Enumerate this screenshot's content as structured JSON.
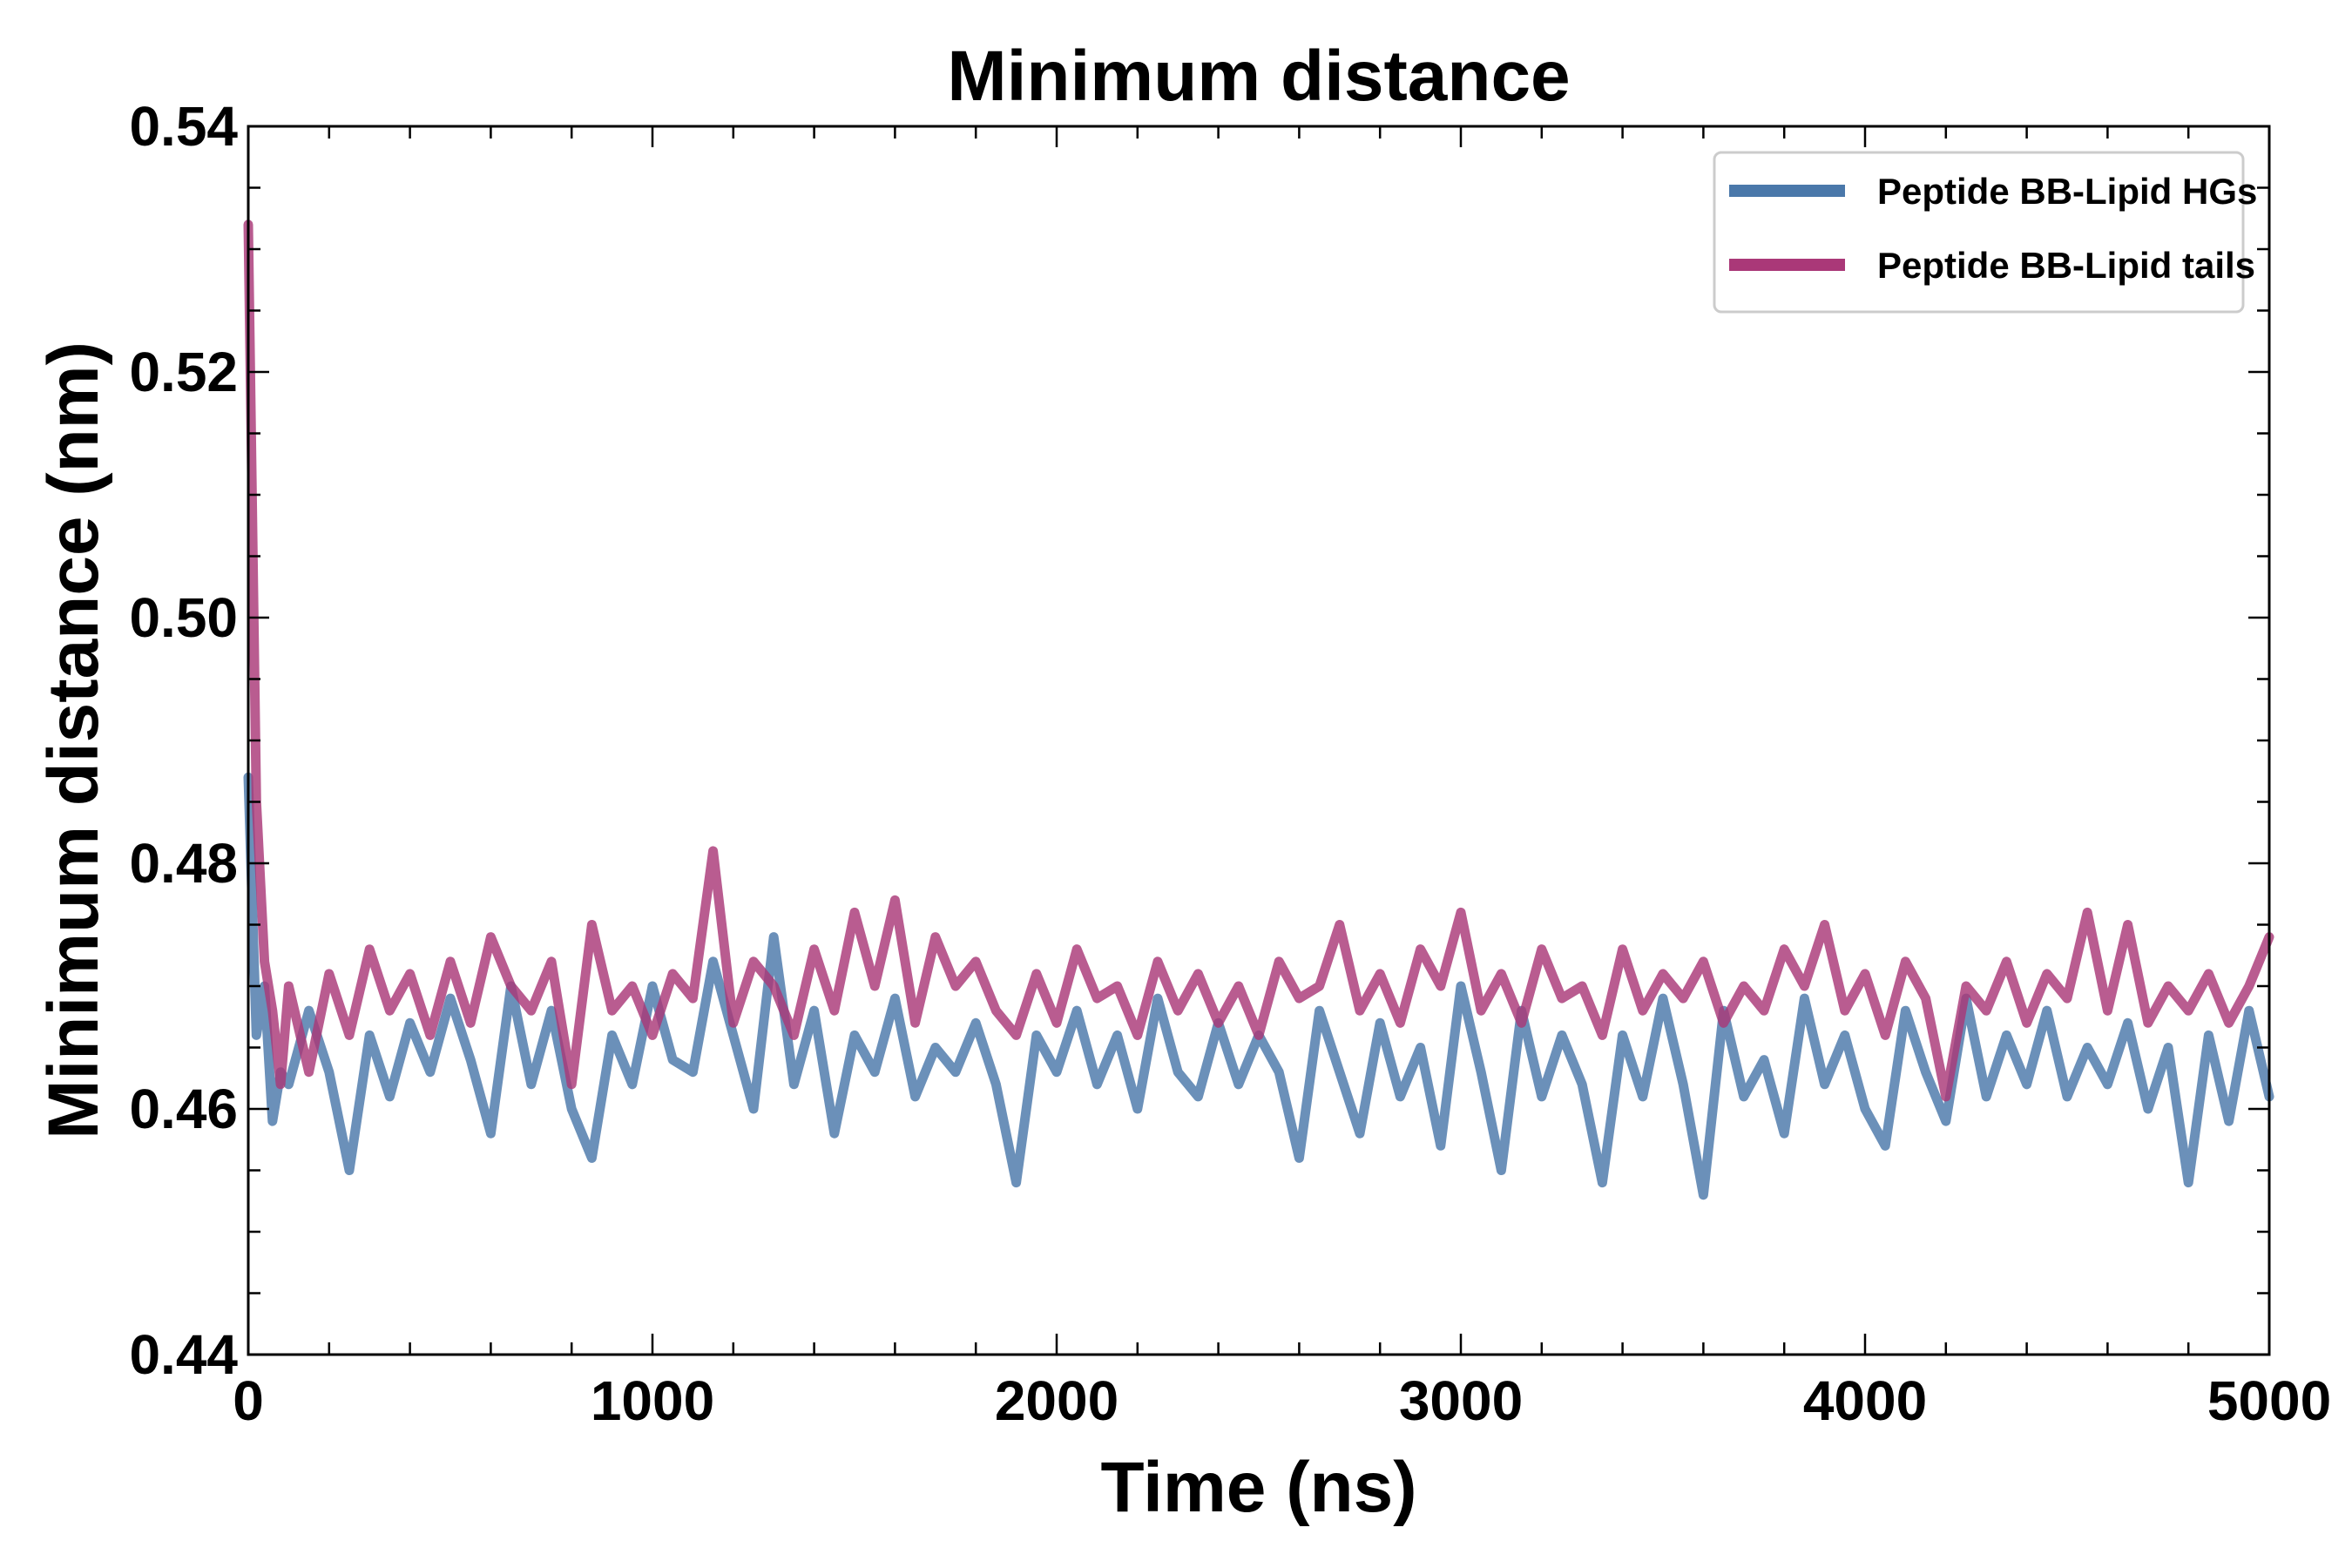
{
  "chart_data": {
    "type": "line",
    "title": "Minimum distance",
    "xlabel": "Time (ns)",
    "ylabel": "Minimum distance (nm)",
    "xlim": [
      0,
      5000
    ],
    "ylim": [
      0.44,
      0.54
    ],
    "xticks": [
      0,
      1000,
      2000,
      3000,
      4000,
      5000
    ],
    "xtick_labels": [
      "0",
      "1000",
      "2000",
      "3000",
      "4000",
      "5000"
    ],
    "yticks": [
      0.44,
      0.46,
      0.48,
      0.5,
      0.52,
      0.54
    ],
    "ytick_labels": [
      "0.44",
      "0.46",
      "0.48",
      "0.50",
      "0.52",
      "0.54"
    ],
    "legend_position": "top-right",
    "grid": false,
    "series": [
      {
        "name": "Peptide BB-Lipid HGs",
        "color": "#4a78aa",
        "x": [
          0,
          20,
          40,
          60,
          80,
          100,
          150,
          200,
          250,
          300,
          350,
          400,
          450,
          500,
          550,
          600,
          650,
          700,
          750,
          800,
          850,
          900,
          950,
          1000,
          1050,
          1100,
          1150,
          1200,
          1250,
          1300,
          1350,
          1400,
          1450,
          1500,
          1550,
          1600,
          1650,
          1700,
          1750,
          1800,
          1850,
          1900,
          1950,
          2000,
          2050,
          2100,
          2150,
          2200,
          2250,
          2300,
          2350,
          2400,
          2450,
          2500,
          2550,
          2600,
          2650,
          2700,
          2750,
          2800,
          2850,
          2900,
          2950,
          3000,
          3050,
          3100,
          3150,
          3200,
          3250,
          3300,
          3350,
          3400,
          3450,
          3500,
          3550,
          3600,
          3650,
          3700,
          3750,
          3800,
          3850,
          3900,
          3950,
          4000,
          4050,
          4100,
          4150,
          4200,
          4250,
          4300,
          4350,
          4400,
          4450,
          4500,
          4550,
          4600,
          4650,
          4700,
          4750,
          4800,
          4850,
          4900,
          4950,
          5000
        ],
        "values": [
          0.487,
          0.466,
          0.47,
          0.459,
          0.463,
          0.462,
          0.468,
          0.463,
          0.455,
          0.466,
          0.461,
          0.467,
          0.463,
          0.469,
          0.464,
          0.458,
          0.47,
          0.462,
          0.468,
          0.46,
          0.456,
          0.466,
          0.462,
          0.47,
          0.464,
          0.463,
          0.472,
          0.466,
          0.46,
          0.474,
          0.462,
          0.468,
          0.458,
          0.466,
          0.463,
          0.469,
          0.461,
          0.465,
          0.463,
          0.467,
          0.462,
          0.454,
          0.466,
          0.463,
          0.468,
          0.462,
          0.466,
          0.46,
          0.469,
          0.463,
          0.461,
          0.467,
          0.462,
          0.466,
          0.463,
          0.456,
          0.468,
          0.463,
          0.458,
          0.467,
          0.461,
          0.465,
          0.457,
          0.47,
          0.463,
          0.455,
          0.468,
          0.461,
          0.466,
          0.462,
          0.454,
          0.466,
          0.461,
          0.469,
          0.462,
          0.453,
          0.468,
          0.461,
          0.464,
          0.458,
          0.469,
          0.462,
          0.466,
          0.46,
          0.457,
          0.468,
          0.463,
          0.459,
          0.469,
          0.461,
          0.466,
          0.462,
          0.468,
          0.461,
          0.465,
          0.462,
          0.467,
          0.46,
          0.465,
          0.454,
          0.466,
          0.459,
          0.468,
          0.461
        ]
      },
      {
        "name": "Peptide BB-Lipid tails",
        "color": "#aa3878",
        "x": [
          0,
          20,
          40,
          60,
          80,
          100,
          150,
          200,
          250,
          300,
          350,
          400,
          450,
          500,
          550,
          600,
          650,
          700,
          750,
          800,
          850,
          900,
          950,
          1000,
          1050,
          1100,
          1150,
          1200,
          1250,
          1300,
          1350,
          1400,
          1450,
          1500,
          1550,
          1600,
          1650,
          1700,
          1750,
          1800,
          1850,
          1900,
          1950,
          2000,
          2050,
          2100,
          2150,
          2200,
          2250,
          2300,
          2350,
          2400,
          2450,
          2500,
          2550,
          2600,
          2650,
          2700,
          2750,
          2800,
          2850,
          2900,
          2950,
          3000,
          3050,
          3100,
          3150,
          3200,
          3250,
          3300,
          3350,
          3400,
          3450,
          3500,
          3550,
          3600,
          3650,
          3700,
          3750,
          3800,
          3850,
          3900,
          3950,
          4000,
          4050,
          4100,
          4150,
          4200,
          4250,
          4300,
          4350,
          4400,
          4450,
          4500,
          4550,
          4600,
          4650,
          4700,
          4750,
          4800,
          4850,
          4900,
          4950,
          5000
        ],
        "values": [
          0.532,
          0.485,
          0.472,
          0.468,
          0.462,
          0.47,
          0.463,
          0.471,
          0.466,
          0.473,
          0.468,
          0.471,
          0.466,
          0.472,
          0.467,
          0.474,
          0.47,
          0.468,
          0.472,
          0.462,
          0.475,
          0.468,
          0.47,
          0.466,
          0.471,
          0.469,
          0.481,
          0.467,
          0.472,
          0.47,
          0.466,
          0.473,
          0.468,
          0.476,
          0.47,
          0.477,
          0.467,
          0.474,
          0.47,
          0.472,
          0.468,
          0.466,
          0.471,
          0.467,
          0.473,
          0.469,
          0.47,
          0.466,
          0.472,
          0.468,
          0.471,
          0.467,
          0.47,
          0.466,
          0.472,
          0.469,
          0.47,
          0.475,
          0.468,
          0.471,
          0.467,
          0.473,
          0.47,
          0.476,
          0.468,
          0.471,
          0.467,
          0.473,
          0.469,
          0.47,
          0.466,
          0.473,
          0.468,
          0.471,
          0.469,
          0.472,
          0.467,
          0.47,
          0.468,
          0.473,
          0.47,
          0.475,
          0.468,
          0.471,
          0.466,
          0.472,
          0.469,
          0.461,
          0.47,
          0.468,
          0.472,
          0.467,
          0.471,
          0.469,
          0.476,
          0.468,
          0.475,
          0.467,
          0.47,
          0.468,
          0.471,
          0.467,
          0.47,
          0.474
        ]
      }
    ]
  }
}
